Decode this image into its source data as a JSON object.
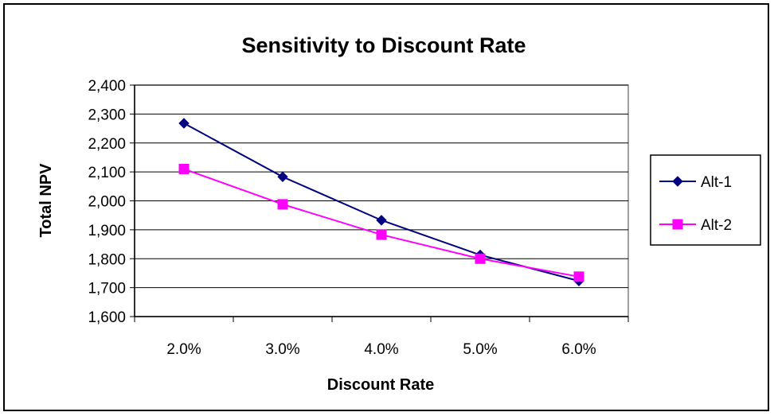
{
  "chart_data": {
    "type": "line",
    "title": "Sensitivity to Discount Rate",
    "xlabel": "Discount Rate",
    "ylabel": "Total NPV",
    "categories": [
      "2.0%",
      "3.0%",
      "4.0%",
      "5.0%",
      "6.0%"
    ],
    "ylim": [
      1600,
      2400
    ],
    "ytick_step": 100,
    "yticks": [
      "1,600",
      "1,700",
      "1,800",
      "1,900",
      "2,000",
      "2,100",
      "2,200",
      "2,300",
      "2,400"
    ],
    "grid": true,
    "legend_position": "right",
    "series": [
      {
        "name": "Alt-1",
        "values": [
          2268,
          2083,
          1933,
          1813,
          1723
        ],
        "color": "#000080",
        "marker": "diamond"
      },
      {
        "name": "Alt-2",
        "values": [
          2110,
          1988,
          1883,
          1800,
          1738
        ],
        "color": "#FF00FF",
        "marker": "square"
      }
    ]
  }
}
